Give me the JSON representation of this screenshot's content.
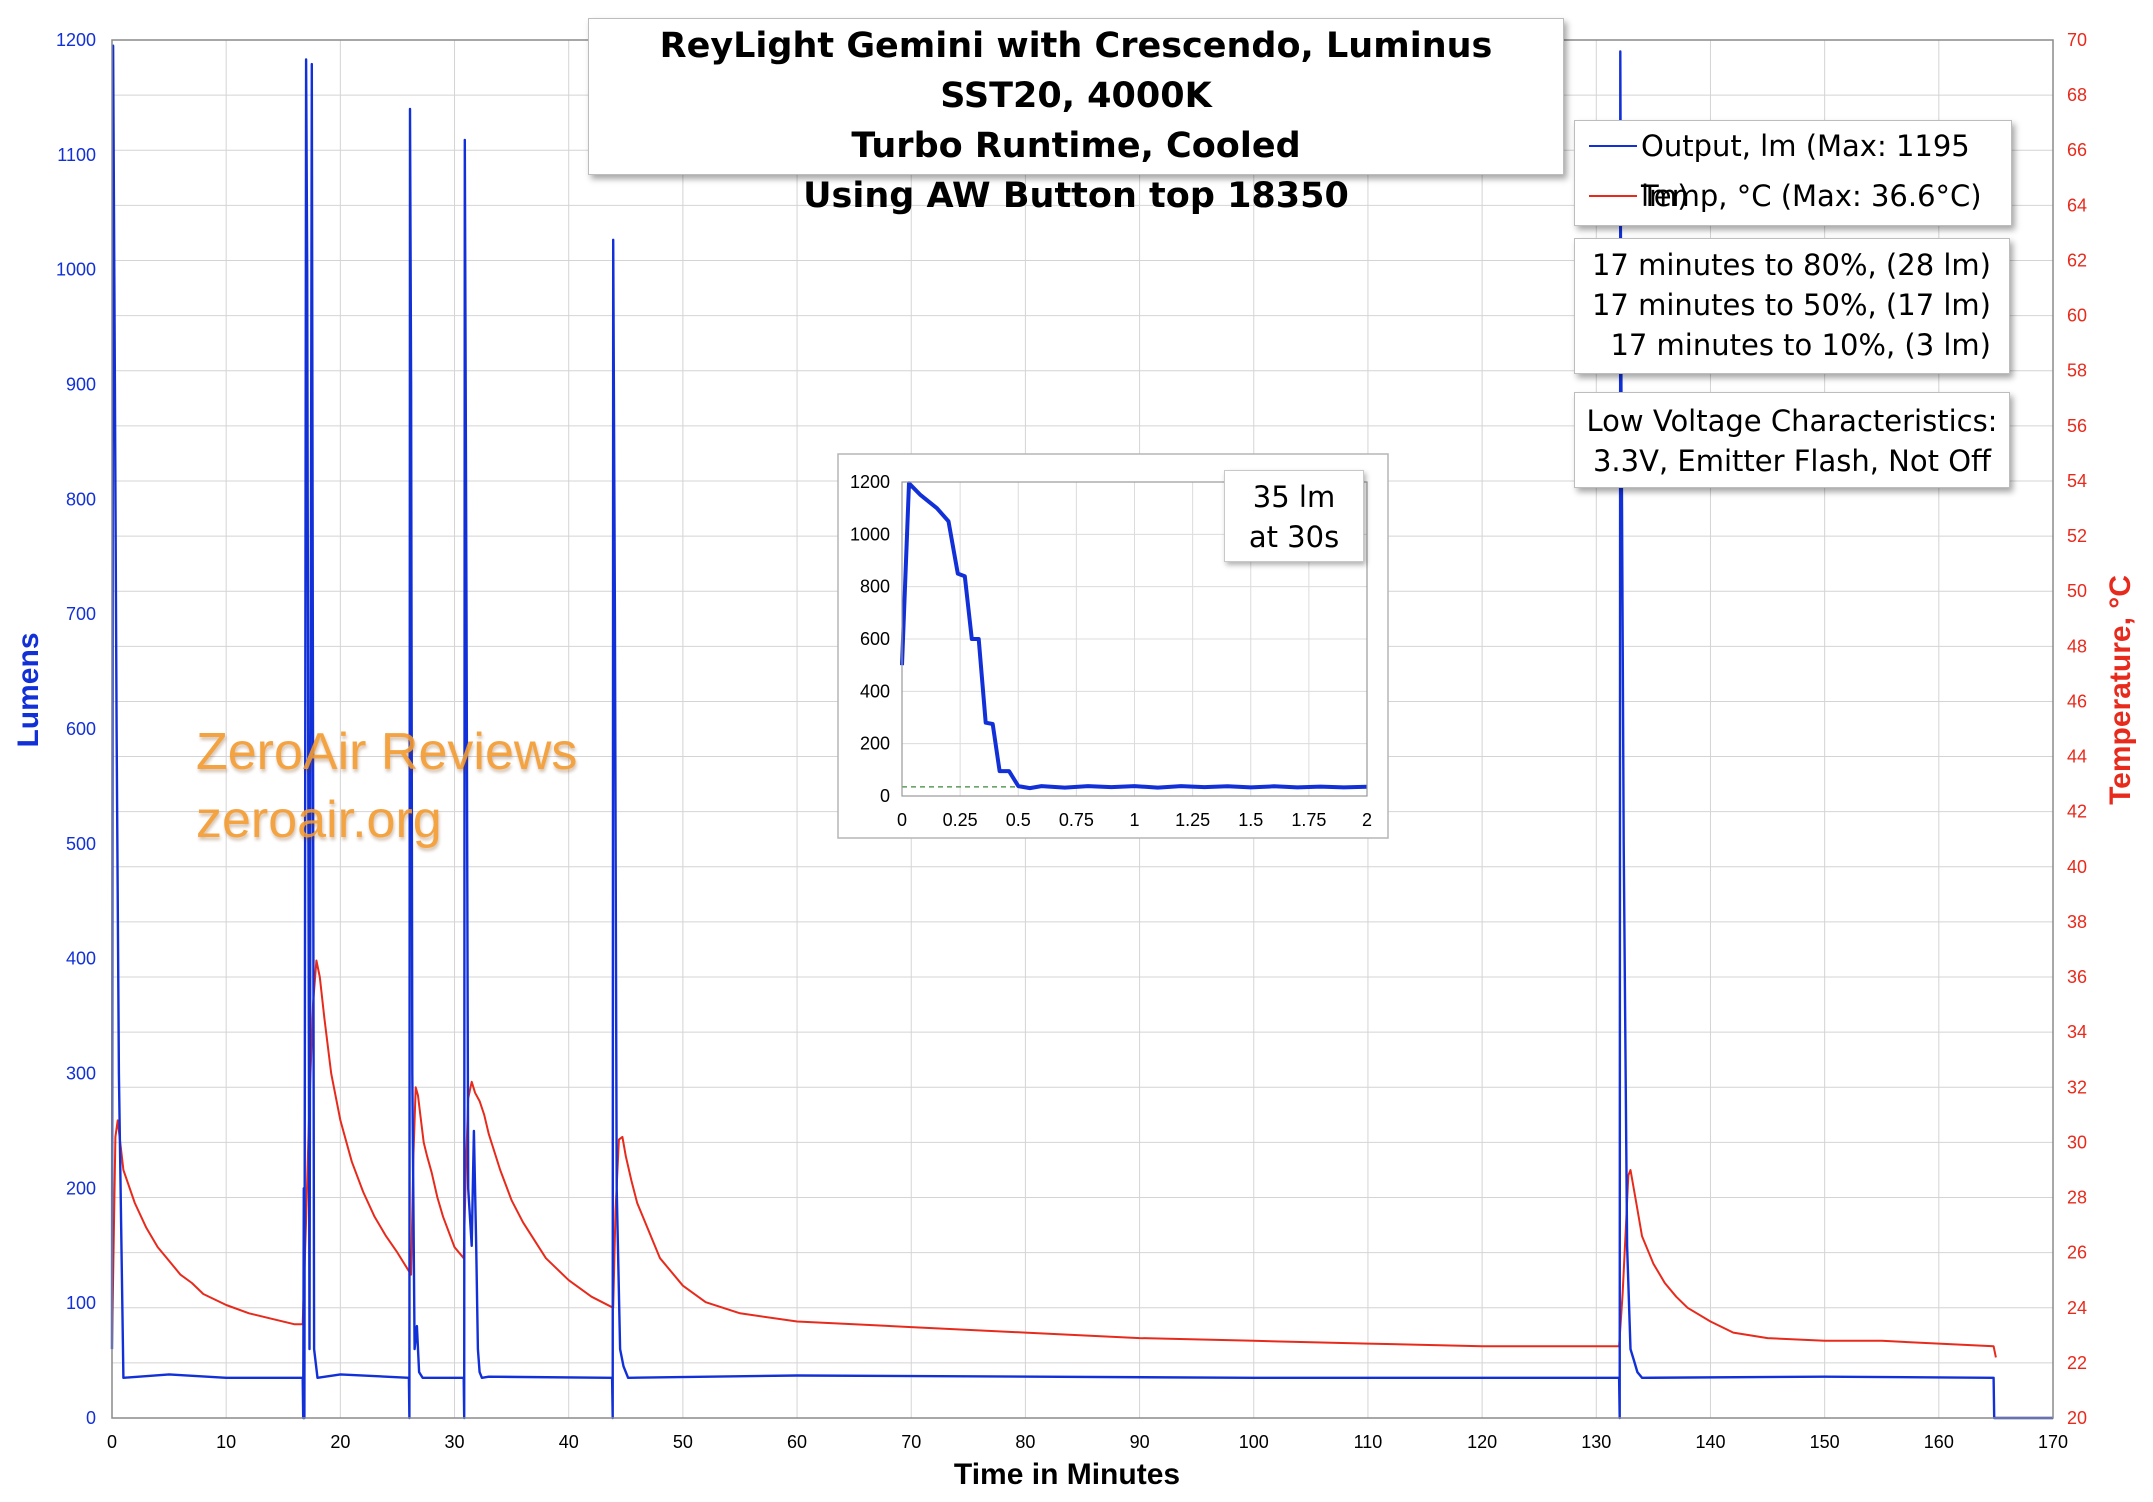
{
  "title": {
    "line1": "ReyLight Gemini with Crescendo, Luminus SST20, 4000K",
    "line2": "Turbo Runtime, Cooled",
    "line3": "Using AW Button top 18350"
  },
  "legend": {
    "output_label": "Output, lm (Max: 1195 lm)",
    "temp_label": "Temp, °C (Max: 36.6°C)",
    "output_color": "#1230d8",
    "temp_color": "#e82a1c"
  },
  "stats": {
    "line1": "17 minutes to 80%, (28 lm)",
    "line2": "17 minutes to 50%, (17 lm)",
    "line3": "17 minutes to 10%, (3 lm)"
  },
  "low_voltage": {
    "line1": "Low Voltage Characteristics:",
    "line2": "3.3V, Emitter Flash, Not Off"
  },
  "watermark": {
    "line1": "ZeroAir Reviews",
    "line2": "zeroair.org"
  },
  "inset_note": {
    "line1": "35 lm",
    "line2": "at 30s"
  },
  "chart_data": [
    {
      "type": "line",
      "xlabel": "Time in Minutes",
      "ylabel": "Lumens",
      "y2label": "Temperature, °C",
      "xlim": [
        0,
        170
      ],
      "ylim": [
        0,
        1200
      ],
      "y2lim": [
        20,
        70
      ],
      "xticks": [
        0,
        10,
        20,
        30,
        40,
        50,
        60,
        70,
        80,
        90,
        100,
        110,
        120,
        130,
        140,
        150,
        160,
        170
      ],
      "yticks": [
        0,
        100,
        200,
        300,
        400,
        500,
        600,
        700,
        800,
        900,
        1000,
        1100,
        1200
      ],
      "y2ticks": [
        20,
        22,
        24,
        26,
        28,
        30,
        32,
        34,
        36,
        38,
        40,
        42,
        44,
        46,
        48,
        50,
        52,
        54,
        56,
        58,
        60,
        62,
        64,
        66,
        68,
        70
      ],
      "grid": true,
      "legend": "top-right",
      "series": [
        {
          "name": "Output, lm (Max: 1195 lm)",
          "axis": "left",
          "color": "#1230d8",
          "x": [
            0,
            0.1,
            0.25,
            0.4,
            0.6,
            1,
            5,
            10,
            16.7,
            16.75,
            16.8,
            16.85,
            17.0,
            17.1,
            17.3,
            17.5,
            17.6,
            17.7,
            18.0,
            20,
            26.0,
            26.05,
            26.1,
            26.2,
            26.3,
            26.5,
            26.7,
            26.9,
            27.2,
            30.8,
            30.85,
            30.9,
            31.05,
            31.2,
            31.5,
            31.7,
            31.9,
            32.05,
            32.2,
            32.4,
            33,
            43.8,
            43.85,
            43.9,
            44.05,
            44.2,
            44.5,
            44.8,
            45.2,
            60,
            100,
            132.0,
            132.05,
            132.1,
            132.2,
            132.4,
            132.7,
            133.0,
            133.3,
            133.6,
            134.0,
            150,
            164.8,
            164.85,
            165,
            170
          ],
          "y": [
            60,
            1195,
            900,
            600,
            300,
            35,
            38,
            35,
            35,
            0,
            200,
            0,
            1183,
            1000,
            60,
            1179,
            600,
            60,
            35,
            38,
            35,
            0,
            1140,
            900,
            300,
            60,
            80,
            40,
            35,
            35,
            0,
            1113,
            700,
            200,
            150,
            250,
            150,
            60,
            40,
            35,
            36,
            35,
            0,
            1026,
            700,
            200,
            60,
            45,
            35,
            37,
            35,
            35,
            0,
            1190,
            900,
            500,
            150,
            60,
            50,
            40,
            35,
            36,
            35,
            0,
            0,
            0
          ]
        },
        {
          "name": "Temp, °C (Max: 36.6°C)",
          "axis": "right",
          "color": "#e82a1c",
          "x": [
            0,
            0.3,
            0.5,
            1,
            2,
            3,
            4,
            5,
            6,
            7,
            8,
            10,
            12,
            14,
            16,
            16.7,
            17.0,
            17.3,
            17.6,
            17.9,
            18.2,
            18.6,
            19.2,
            20,
            21,
            22,
            23,
            24,
            25,
            26.2,
            26.4,
            26.6,
            26.8,
            27.0,
            27.3,
            27.6,
            28,
            28.5,
            29,
            30,
            30.8,
            31.0,
            31.2,
            31.5,
            31.8,
            32.2,
            32.6,
            33,
            34,
            35,
            36,
            38,
            40,
            42,
            43.9,
            44.1,
            44.4,
            44.7,
            45,
            45.5,
            46,
            47,
            48,
            50,
            52,
            55,
            60,
            65,
            70,
            80,
            90,
            100,
            110,
            120,
            132.0,
            132.3,
            132.6,
            132.8,
            133,
            133.5,
            134,
            135,
            136,
            137,
            138,
            140,
            142,
            145,
            150,
            155,
            160,
            164.8,
            165
          ],
          "y": [
            22.6,
            30.2,
            30.8,
            29.0,
            27.8,
            26.9,
            26.2,
            25.7,
            25.2,
            24.9,
            24.5,
            24.1,
            23.8,
            23.6,
            23.4,
            23.4,
            27.2,
            31.5,
            35.0,
            36.6,
            36.0,
            34.5,
            32.5,
            30.8,
            29.3,
            28.2,
            27.3,
            26.6,
            26.0,
            25.2,
            29.5,
            32.0,
            31.7,
            31.0,
            30.0,
            29.5,
            28.9,
            28.0,
            27.3,
            26.2,
            25.8,
            29.0,
            31.6,
            32.2,
            31.8,
            31.5,
            31.0,
            30.3,
            29.0,
            27.9,
            27.1,
            25.8,
            25.0,
            24.4,
            24.0,
            27.5,
            30.1,
            30.2,
            29.5,
            28.6,
            27.8,
            26.8,
            25.8,
            24.8,
            24.2,
            23.8,
            23.5,
            23.4,
            23.3,
            23.1,
            22.9,
            22.8,
            22.7,
            22.6,
            22.6,
            24.5,
            27.0,
            28.8,
            29.0,
            27.8,
            26.6,
            25.6,
            24.9,
            24.4,
            24.0,
            23.5,
            23.1,
            22.9,
            22.8,
            22.8,
            22.7,
            22.6,
            22.2
          ]
        }
      ]
    },
    {
      "type": "line",
      "xlim": [
        0,
        2
      ],
      "ylim": [
        0,
        1200
      ],
      "xticks": [
        0,
        0.25,
        0.5,
        0.75,
        1,
        1.25,
        1.5,
        1.75,
        2
      ],
      "yticks": [
        0,
        200,
        400,
        600,
        800,
        1000,
        1200
      ],
      "grid": true,
      "reference_line_y": 35,
      "series": [
        {
          "color": "#1230d8",
          "x": [
            0,
            0.03,
            0.08,
            0.15,
            0.2,
            0.24,
            0.27,
            0.3,
            0.33,
            0.36,
            0.39,
            0.42,
            0.46,
            0.5,
            0.55,
            0.6,
            0.7,
            0.8,
            0.9,
            1.0,
            1.1,
            1.2,
            1.3,
            1.4,
            1.5,
            1.6,
            1.7,
            1.8,
            1.9,
            2.0
          ],
          "y": [
            500,
            1195,
            1150,
            1100,
            1050,
            850,
            840,
            600,
            600,
            280,
            275,
            95,
            95,
            38,
            30,
            38,
            32,
            38,
            34,
            38,
            32,
            38,
            34,
            37,
            33,
            37,
            33,
            36,
            33,
            35
          ]
        }
      ]
    }
  ]
}
